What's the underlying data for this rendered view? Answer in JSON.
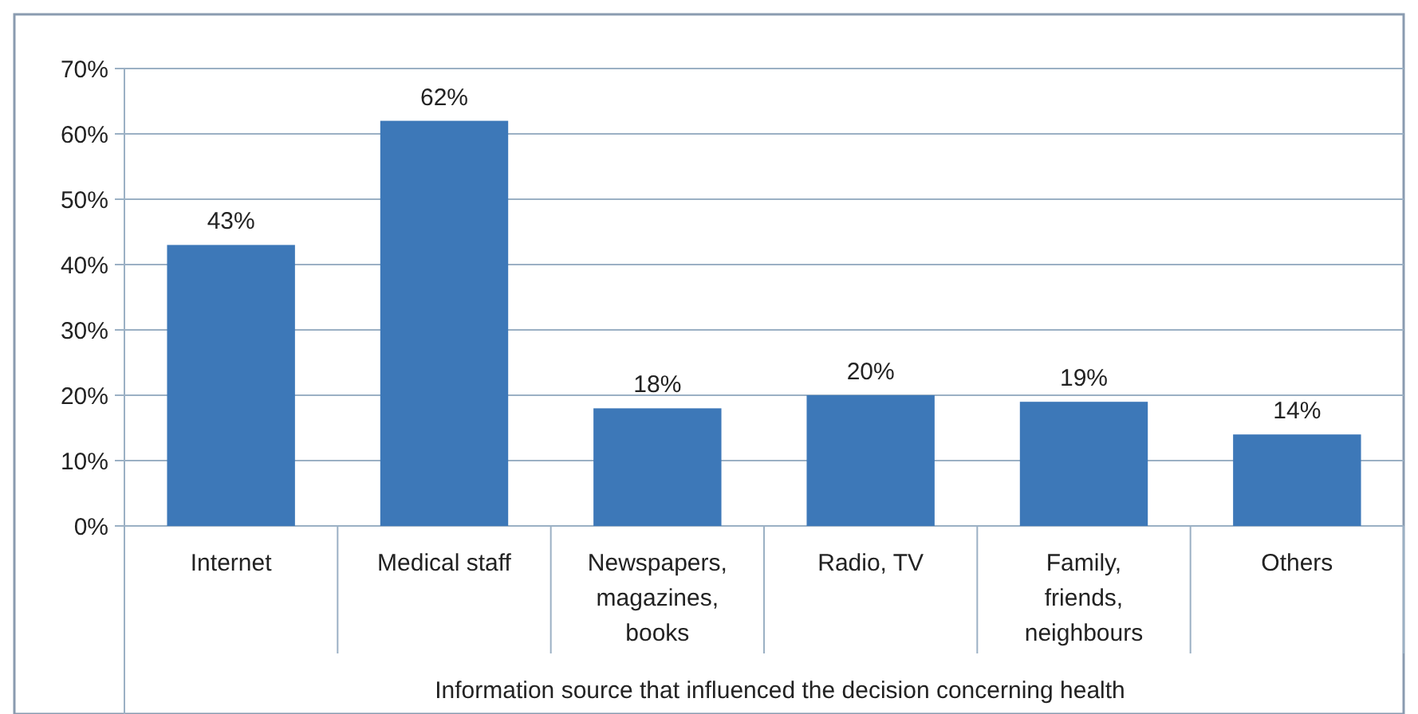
{
  "chart_data": {
    "type": "bar",
    "xlabel": "Information source that influenced the decision concerning health",
    "categories": [
      "Internet",
      "Medical staff",
      "Newspapers, magazines, books",
      "Radio, TV",
      "Family, friends, neighbours",
      "Others"
    ],
    "values": [
      43,
      62,
      18,
      20,
      19,
      14
    ],
    "value_labels": [
      "43%",
      "62%",
      "18%",
      "20%",
      "19%",
      "14%"
    ],
    "color": "#3d78b8",
    "ylim": [
      0,
      70
    ],
    "yticks": [
      {
        "value": 0,
        "label": "0%"
      },
      {
        "value": 10,
        "label": "10%"
      },
      {
        "value": 20,
        "label": "20%"
      },
      {
        "value": 30,
        "label": "30%"
      },
      {
        "value": 40,
        "label": "40%"
      },
      {
        "value": 50,
        "label": "50%"
      },
      {
        "value": 60,
        "label": "60%"
      },
      {
        "value": 70,
        "label": "70%"
      }
    ],
    "grid": "y"
  }
}
